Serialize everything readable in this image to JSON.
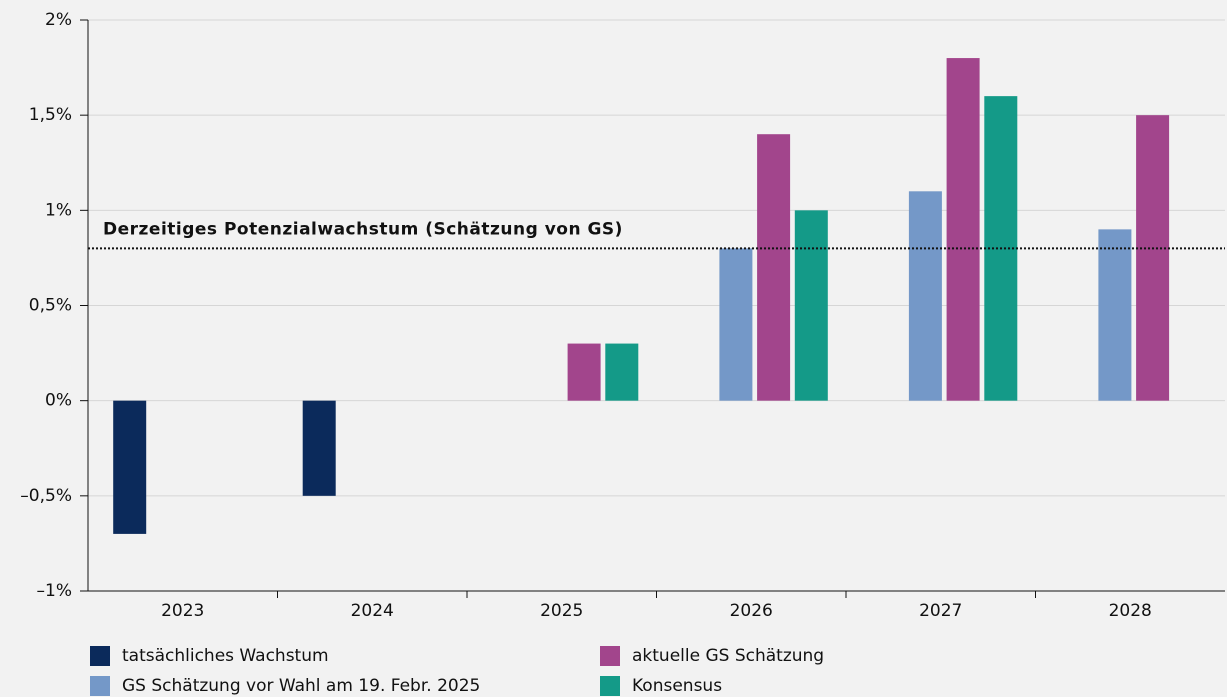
{
  "chart_data": {
    "type": "bar",
    "categories": [
      "2023",
      "2024",
      "2025",
      "2026",
      "2027",
      "2028"
    ],
    "series": [
      {
        "name": "tatsächliches Wachstum",
        "color": "#0b2a5b",
        "values": [
          -0.7,
          -0.5,
          null,
          null,
          null,
          null
        ]
      },
      {
        "name": "GS Schätzung vor Wahl am 19. Febr. 2025",
        "color": "#7498c8",
        "values": [
          null,
          null,
          null,
          0.8,
          1.1,
          0.9
        ]
      },
      {
        "name": "aktuelle GS Schätzung",
        "color": "#a2458c",
        "values": [
          null,
          null,
          0.3,
          1.4,
          1.8,
          1.5
        ]
      },
      {
        "name": "Konsensus",
        "color": "#149a88",
        "values": [
          null,
          null,
          0.3,
          1.0,
          1.6,
          null
        ]
      }
    ],
    "ylim": [
      -1,
      2
    ],
    "yticks": [
      {
        "value": 2,
        "label": "2%"
      },
      {
        "value": 1.5,
        "label": "1,5%"
      },
      {
        "value": 1,
        "label": "1%"
      },
      {
        "value": 0.5,
        "label": "0,5%"
      },
      {
        "value": 0,
        "label": "0%"
      },
      {
        "value": -0.5,
        "label": "–0,5%"
      },
      {
        "value": -1,
        "label": "–1%"
      }
    ],
    "grid": true,
    "reference_line": {
      "value": 0.8,
      "label": "Derzeitiges Potenzialwachstum (Schätzung von GS)"
    }
  }
}
